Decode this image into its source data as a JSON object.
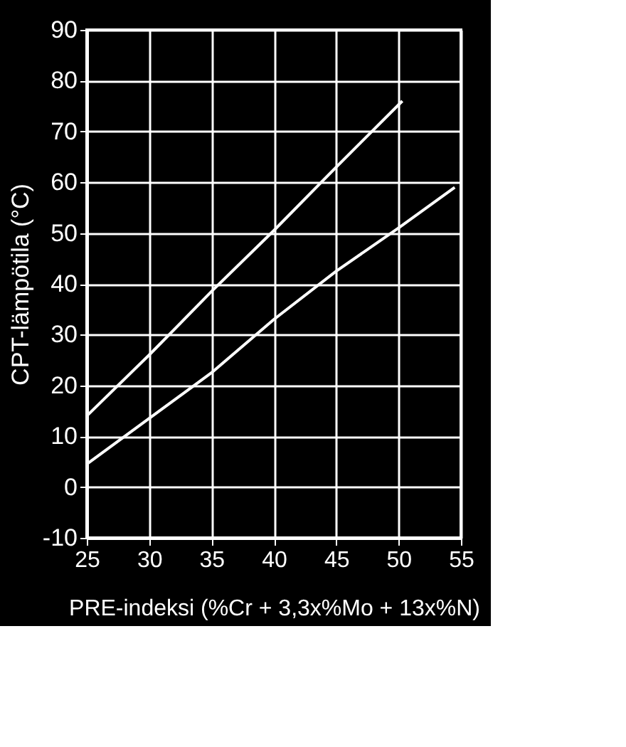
{
  "chart_data": {
    "type": "line",
    "xlabel": "PRE-indeksi (%Cr + 3,3x%Mo + 13x%N)",
    "ylabel": "CPT-lämpötila (°C)",
    "xlim": [
      25,
      55
    ],
    "xticks": [
      25,
      30,
      35,
      40,
      45,
      50,
      55
    ],
    "ylim": [
      -10,
      90
    ],
    "yticks": [
      -10,
      0,
      10,
      20,
      30,
      40,
      50,
      60,
      70,
      80,
      90
    ],
    "grid": true,
    "marker": "none",
    "line_style": "solid",
    "series": [
      {
        "color": "#ffffff",
        "x": [
          25,
          30,
          35,
          40,
          45,
          50.3
        ],
        "values": [
          14,
          26,
          38.5,
          50.5,
          63,
          76
        ]
      },
      {
        "color": "#ffffff",
        "x": [
          25,
          30,
          35,
          40,
          45,
          50,
          54.5
        ],
        "values": [
          4.5,
          13.5,
          22.5,
          33,
          42.5,
          51,
          59
        ]
      }
    ]
  }
}
